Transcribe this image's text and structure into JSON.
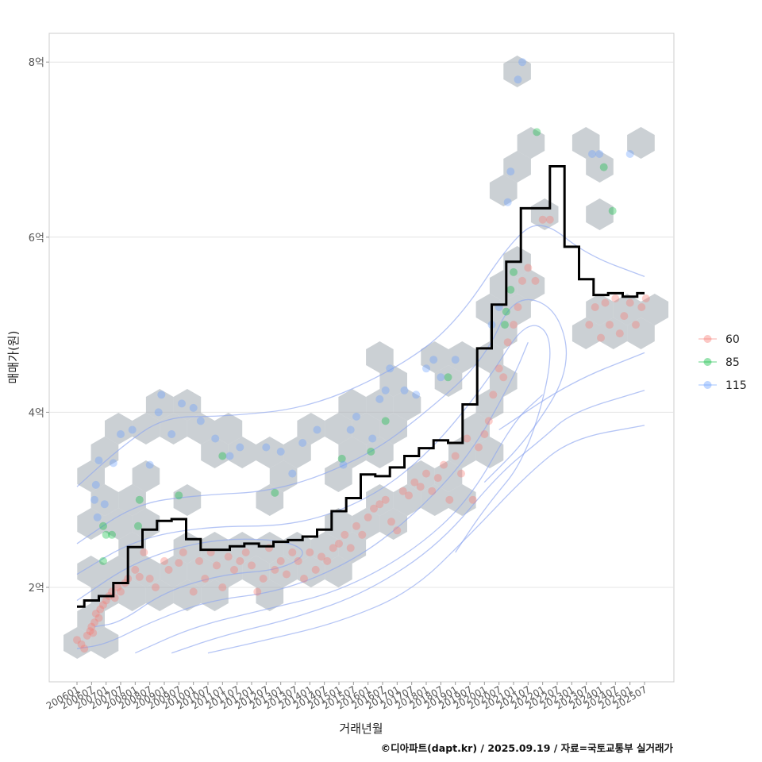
{
  "chart_data": {
    "type": "scatter",
    "xlabel": "거래년월",
    "ylabel": "매매가(원)",
    "caption": "©디아파트(dapt.kr) / 2025.09.19 / 자료=국토교통부 실거래가",
    "ylim": [
      1.0,
      8.35
    ],
    "y_ticks": [
      {
        "value": 2,
        "label": "2억"
      },
      {
        "value": 4,
        "label": "4억"
      },
      {
        "value": 6,
        "label": "6억"
      },
      {
        "value": 8,
        "label": "8억"
      }
    ],
    "x_ticks": [
      "200601",
      "200607",
      "200701",
      "200707",
      "200801",
      "200807",
      "200901",
      "200907",
      "201001",
      "201007",
      "201101",
      "201107",
      "201201",
      "201207",
      "201301",
      "201307",
      "201401",
      "201407",
      "201501",
      "201507",
      "201601",
      "201607",
      "201701",
      "201707",
      "201801",
      "201807",
      "201901",
      "201907",
      "202001",
      "202007",
      "202101",
      "202107",
      "202201",
      "202207",
      "202301",
      "202307",
      "202401",
      "202407",
      "202501",
      "202507"
    ],
    "grid": true,
    "legend": {
      "position": "right",
      "entries": [
        {
          "label": "60",
          "color": "#f8766d"
        },
        {
          "label": "85",
          "color": "#00ba38"
        },
        {
          "label": "115",
          "color": "#619cff"
        }
      ]
    },
    "median_line": {
      "color": "#000000",
      "x_index": [
        0,
        1,
        2,
        3,
        4,
        5,
        6,
        7,
        8,
        9,
        10,
        11,
        12,
        13,
        14,
        15,
        16,
        17,
        18,
        19,
        20,
        21,
        22,
        23,
        24,
        25,
        26,
        27,
        28,
        29,
        30,
        31,
        32,
        33,
        34,
        35,
        36,
        37,
        38,
        39
      ],
      "values": [
        1.78,
        1.85,
        1.9,
        2.05,
        2.46,
        2.66,
        2.76,
        2.78,
        2.55,
        2.43,
        2.43,
        2.47,
        2.5,
        2.47,
        2.52,
        2.54,
        2.58,
        2.66,
        2.87,
        3.02,
        3.29,
        3.27,
        3.37,
        3.5,
        3.59,
        3.68,
        3.65,
        4.09,
        4.73,
        5.23,
        5.72,
        6.33,
        6.33,
        6.81,
        5.89,
        5.52,
        5.34,
        5.36,
        5.32,
        5.36
      ]
    },
    "scatter_points": {
      "60": [
        [
          0,
          1.4
        ],
        [
          0.3,
          1.35
        ],
        [
          0.5,
          1.3
        ],
        [
          0.7,
          1.45
        ],
        [
          0.9,
          1.5
        ],
        [
          1.0,
          1.55
        ],
        [
          1.1,
          1.48
        ],
        [
          1.2,
          1.6
        ],
        [
          1.3,
          1.7
        ],
        [
          1.5,
          1.65
        ],
        [
          1.6,
          1.75
        ],
        [
          1.8,
          1.8
        ],
        [
          2.0,
          1.85
        ],
        [
          2.2,
          1.9
        ],
        [
          2.4,
          1.95
        ],
        [
          2.6,
          1.88
        ],
        [
          2.8,
          2.0
        ],
        [
          3.0,
          1.95
        ],
        [
          3.3,
          2.05
        ],
        [
          3.5,
          2.1
        ],
        [
          4.0,
          2.2
        ],
        [
          4.3,
          2.12
        ],
        [
          4.6,
          2.4
        ],
        [
          5.0,
          2.1
        ],
        [
          5.4,
          2.0
        ],
        [
          6.0,
          2.3
        ],
        [
          6.3,
          2.2
        ],
        [
          7.0,
          2.28
        ],
        [
          7.3,
          2.4
        ],
        [
          8.0,
          1.95
        ],
        [
          8.4,
          2.3
        ],
        [
          8.8,
          2.1
        ],
        [
          9.2,
          2.4
        ],
        [
          9.6,
          2.25
        ],
        [
          10.0,
          2.0
        ],
        [
          10.4,
          2.35
        ],
        [
          10.8,
          2.2
        ],
        [
          11.2,
          2.3
        ],
        [
          11.6,
          2.4
        ],
        [
          12.0,
          2.25
        ],
        [
          12.4,
          1.95
        ],
        [
          12.8,
          2.1
        ],
        [
          13.2,
          2.45
        ],
        [
          13.6,
          2.2
        ],
        [
          14.0,
          2.3
        ],
        [
          14.4,
          2.15
        ],
        [
          14.8,
          2.4
        ],
        [
          15.2,
          2.3
        ],
        [
          15.6,
          2.1
        ],
        [
          16.0,
          2.4
        ],
        [
          16.4,
          2.2
        ],
        [
          16.8,
          2.35
        ],
        [
          17.2,
          2.3
        ],
        [
          17.6,
          2.45
        ],
        [
          18.0,
          2.5
        ],
        [
          18.4,
          2.6
        ],
        [
          18.8,
          2.45
        ],
        [
          19.2,
          2.7
        ],
        [
          19.6,
          2.6
        ],
        [
          20.0,
          2.8
        ],
        [
          20.4,
          2.9
        ],
        [
          20.8,
          2.95
        ],
        [
          21.2,
          3.0
        ],
        [
          21.6,
          2.75
        ],
        [
          22.0,
          2.65
        ],
        [
          22.4,
          3.1
        ],
        [
          22.8,
          3.05
        ],
        [
          23.2,
          3.2
        ],
        [
          23.6,
          3.15
        ],
        [
          24.0,
          3.3
        ],
        [
          24.4,
          3.1
        ],
        [
          24.8,
          3.25
        ],
        [
          25.2,
          3.4
        ],
        [
          25.6,
          3.0
        ],
        [
          26.0,
          3.5
        ],
        [
          26.4,
          3.3
        ],
        [
          26.8,
          3.7
        ],
        [
          27.2,
          3.0
        ],
        [
          27.6,
          3.6
        ],
        [
          28.0,
          3.75
        ],
        [
          28.3,
          3.9
        ],
        [
          28.6,
          4.2
        ],
        [
          29.0,
          4.5
        ],
        [
          29.3,
          4.4
        ],
        [
          29.6,
          4.8
        ],
        [
          30.0,
          5.0
        ],
        [
          30.3,
          5.2
        ],
        [
          30.6,
          5.5
        ],
        [
          31.0,
          5.65
        ],
        [
          31.5,
          5.5
        ],
        [
          32.0,
          6.2
        ],
        [
          32.5,
          6.2
        ],
        [
          35.2,
          5.0
        ],
        [
          35.6,
          5.2
        ],
        [
          36.0,
          4.85
        ],
        [
          36.3,
          5.25
        ],
        [
          36.6,
          5.0
        ],
        [
          37.0,
          5.3
        ],
        [
          37.3,
          4.9
        ],
        [
          37.6,
          5.1
        ],
        [
          38.0,
          5.25
        ],
        [
          38.4,
          5.0
        ],
        [
          38.8,
          5.2
        ],
        [
          39.1,
          5.3
        ]
      ],
      "85": [
        [
          1.8,
          2.7
        ],
        [
          1.8,
          2.3
        ],
        [
          2.0,
          2.6
        ],
        [
          2.4,
          2.6
        ],
        [
          4.2,
          2.7
        ],
        [
          4.3,
          3.0
        ],
        [
          7.0,
          3.05
        ],
        [
          10.0,
          3.5
        ],
        [
          13.6,
          3.08
        ],
        [
          18.2,
          3.47
        ],
        [
          20.2,
          3.55
        ],
        [
          21.2,
          3.9
        ],
        [
          25.5,
          4.4
        ],
        [
          29.4,
          5.0
        ],
        [
          29.5,
          5.15
        ],
        [
          29.8,
          5.4
        ],
        [
          30.0,
          5.6
        ],
        [
          31.6,
          7.2
        ],
        [
          36.2,
          6.8
        ],
        [
          36.8,
          6.3
        ]
      ],
      "115": [
        [
          1.2,
          3.0
        ],
        [
          1.3,
          3.17
        ],
        [
          1.4,
          2.8
        ],
        [
          1.5,
          3.45
        ],
        [
          1.9,
          2.95
        ],
        [
          2.5,
          3.42
        ],
        [
          3.0,
          3.75
        ],
        [
          3.8,
          3.8
        ],
        [
          5.0,
          3.4
        ],
        [
          5.6,
          4.0
        ],
        [
          5.8,
          4.2
        ],
        [
          6.5,
          3.75
        ],
        [
          7.2,
          4.1
        ],
        [
          8.0,
          4.05
        ],
        [
          8.5,
          3.9
        ],
        [
          9.5,
          3.7
        ],
        [
          10.5,
          3.5
        ],
        [
          11.2,
          3.6
        ],
        [
          13.0,
          3.6
        ],
        [
          14.0,
          3.55
        ],
        [
          14.8,
          3.3
        ],
        [
          15.5,
          3.65
        ],
        [
          16.5,
          3.8
        ],
        [
          18.3,
          3.4
        ],
        [
          18.8,
          3.8
        ],
        [
          19.2,
          3.95
        ],
        [
          20.3,
          3.7
        ],
        [
          20.8,
          4.15
        ],
        [
          21.2,
          4.25
        ],
        [
          21.5,
          4.5
        ],
        [
          22.5,
          4.25
        ],
        [
          23.3,
          4.2
        ],
        [
          24.0,
          4.5
        ],
        [
          24.5,
          4.6
        ],
        [
          25.0,
          4.4
        ],
        [
          26.0,
          4.6
        ],
        [
          28.5,
          5.0
        ],
        [
          29.0,
          5.2
        ],
        [
          29.6,
          6.4
        ],
        [
          29.8,
          6.75
        ],
        [
          30.3,
          7.8
        ],
        [
          30.6,
          8.0
        ],
        [
          35.4,
          6.95
        ],
        [
          35.9,
          6.95
        ],
        [
          38.0,
          6.95
        ]
      ]
    },
    "hexbin_note": "grey hexagonal bins behind points; blue density contours"
  }
}
